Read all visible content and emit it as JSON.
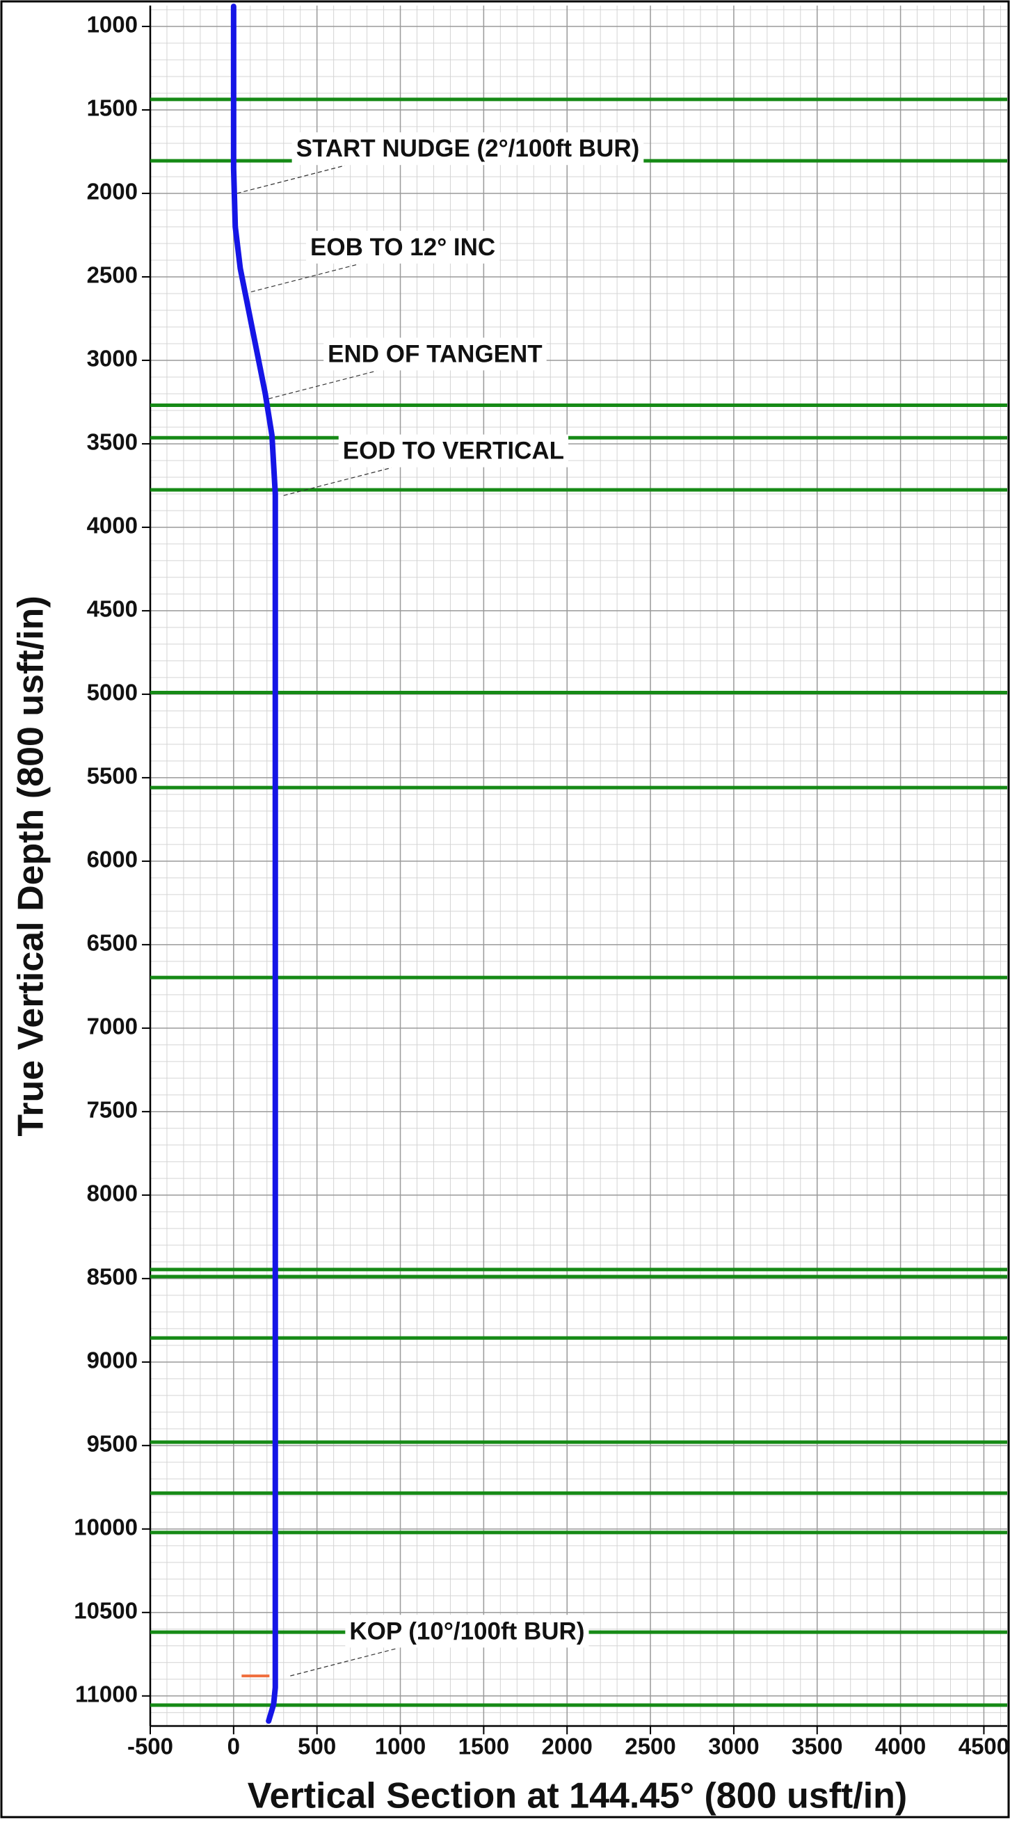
{
  "chart_data": {
    "type": "line",
    "xlabel": "Vertical Section at 144.45° (800 usft/in)",
    "ylabel": "True Vertical Depth (800 usft/in)",
    "xlim": [
      -500,
      4640
    ],
    "ylim": [
      11180,
      875
    ],
    "xticks": [
      -500,
      0,
      500,
      1000,
      1500,
      2000,
      2500,
      3000,
      3500,
      4000,
      4500
    ],
    "yticks": [
      1000,
      1500,
      2000,
      2500,
      3000,
      3500,
      4000,
      4500,
      5000,
      5500,
      6000,
      6500,
      7000,
      7500,
      8000,
      8500,
      9000,
      9500,
      10000,
      10500,
      11000
    ],
    "grid": true,
    "minor_grid": true,
    "color": "#1515e6",
    "x": [
      0,
      0,
      10,
      40,
      90,
      150,
      190,
      230,
      250,
      250,
      250,
      240,
      210
    ],
    "values": [
      880,
      1850,
      2200,
      2450,
      2700,
      3000,
      3200,
      3450,
      3800,
      10880,
      10950,
      11050,
      11150
    ],
    "hlines": [
      1437,
      1805,
      3269,
      3464,
      3776,
      4990,
      5559,
      6697,
      8446,
      8488,
      8856,
      9480,
      9785,
      10021,
      10618,
      11055
    ],
    "hline_color": "#168a16",
    "annotations": [
      {
        "text": "START NUDGE (2°/100ft BUR)",
        "x": 20,
        "y": 2000
      },
      {
        "text": "EOB TO 12° INC",
        "x": 105,
        "y": 2590
      },
      {
        "text": "END OF TANGENT",
        "x": 210,
        "y": 3230
      },
      {
        "text": "EOD TO VERTICAL",
        "x": 300,
        "y": 3810
      },
      {
        "text": "KOP (10°/100ft BUR)",
        "x": 340,
        "y": 10880
      }
    ],
    "annotation_marker_color": "#f07040"
  }
}
